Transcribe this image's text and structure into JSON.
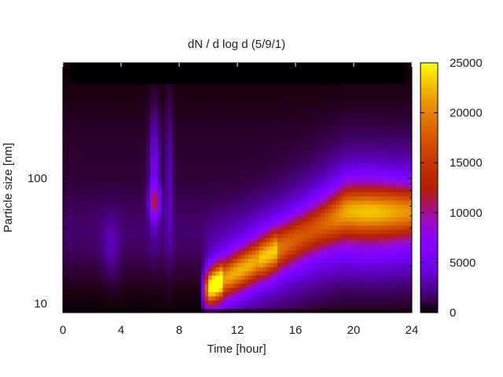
{
  "chart_data": {
    "type": "heatmap",
    "title": "dN / d log d (5/9/1)",
    "xlabel": "Time [hour]",
    "ylabel": "Particle size [nm]",
    "x_range": [
      0,
      24
    ],
    "x_ticks": [
      0,
      4,
      8,
      12,
      16,
      20,
      24
    ],
    "x_tick_labels": [
      "0",
      "4",
      "8",
      "12",
      "16",
      "20",
      "24"
    ],
    "y_scale": "log",
    "y_range": [
      8.5,
      830
    ],
    "y_ticks": [
      10,
      100
    ],
    "y_tick_labels": [
      "10",
      "100"
    ],
    "colorbar": {
      "range": [
        0,
        25000
      ],
      "ticks": [
        0,
        5000,
        10000,
        15000,
        20000,
        25000
      ],
      "tick_labels": [
        "0",
        "5000",
        "10000",
        "15000",
        "20000",
        "25000"
      ],
      "palette": [
        "#000000",
        "#3a0060",
        "#7a00d8",
        "#b02ad0",
        "#d2421f",
        "#f07a00",
        "#ffc000",
        "#ffff20"
      ]
    },
    "features": [
      {
        "description": "nucleation banana: growth from ~13 nm at 10 h to ~55 nm at 19 h",
        "start_hour": 9.8,
        "end_hour": 19.5,
        "start_size_nm": 13,
        "end_size_nm": 55,
        "peak_value": 23000
      },
      {
        "description": "morning burst near 6.3 h around 65 nm",
        "hour": 6.3,
        "size_nm": 65,
        "peak_value": 12500
      }
    ]
  }
}
